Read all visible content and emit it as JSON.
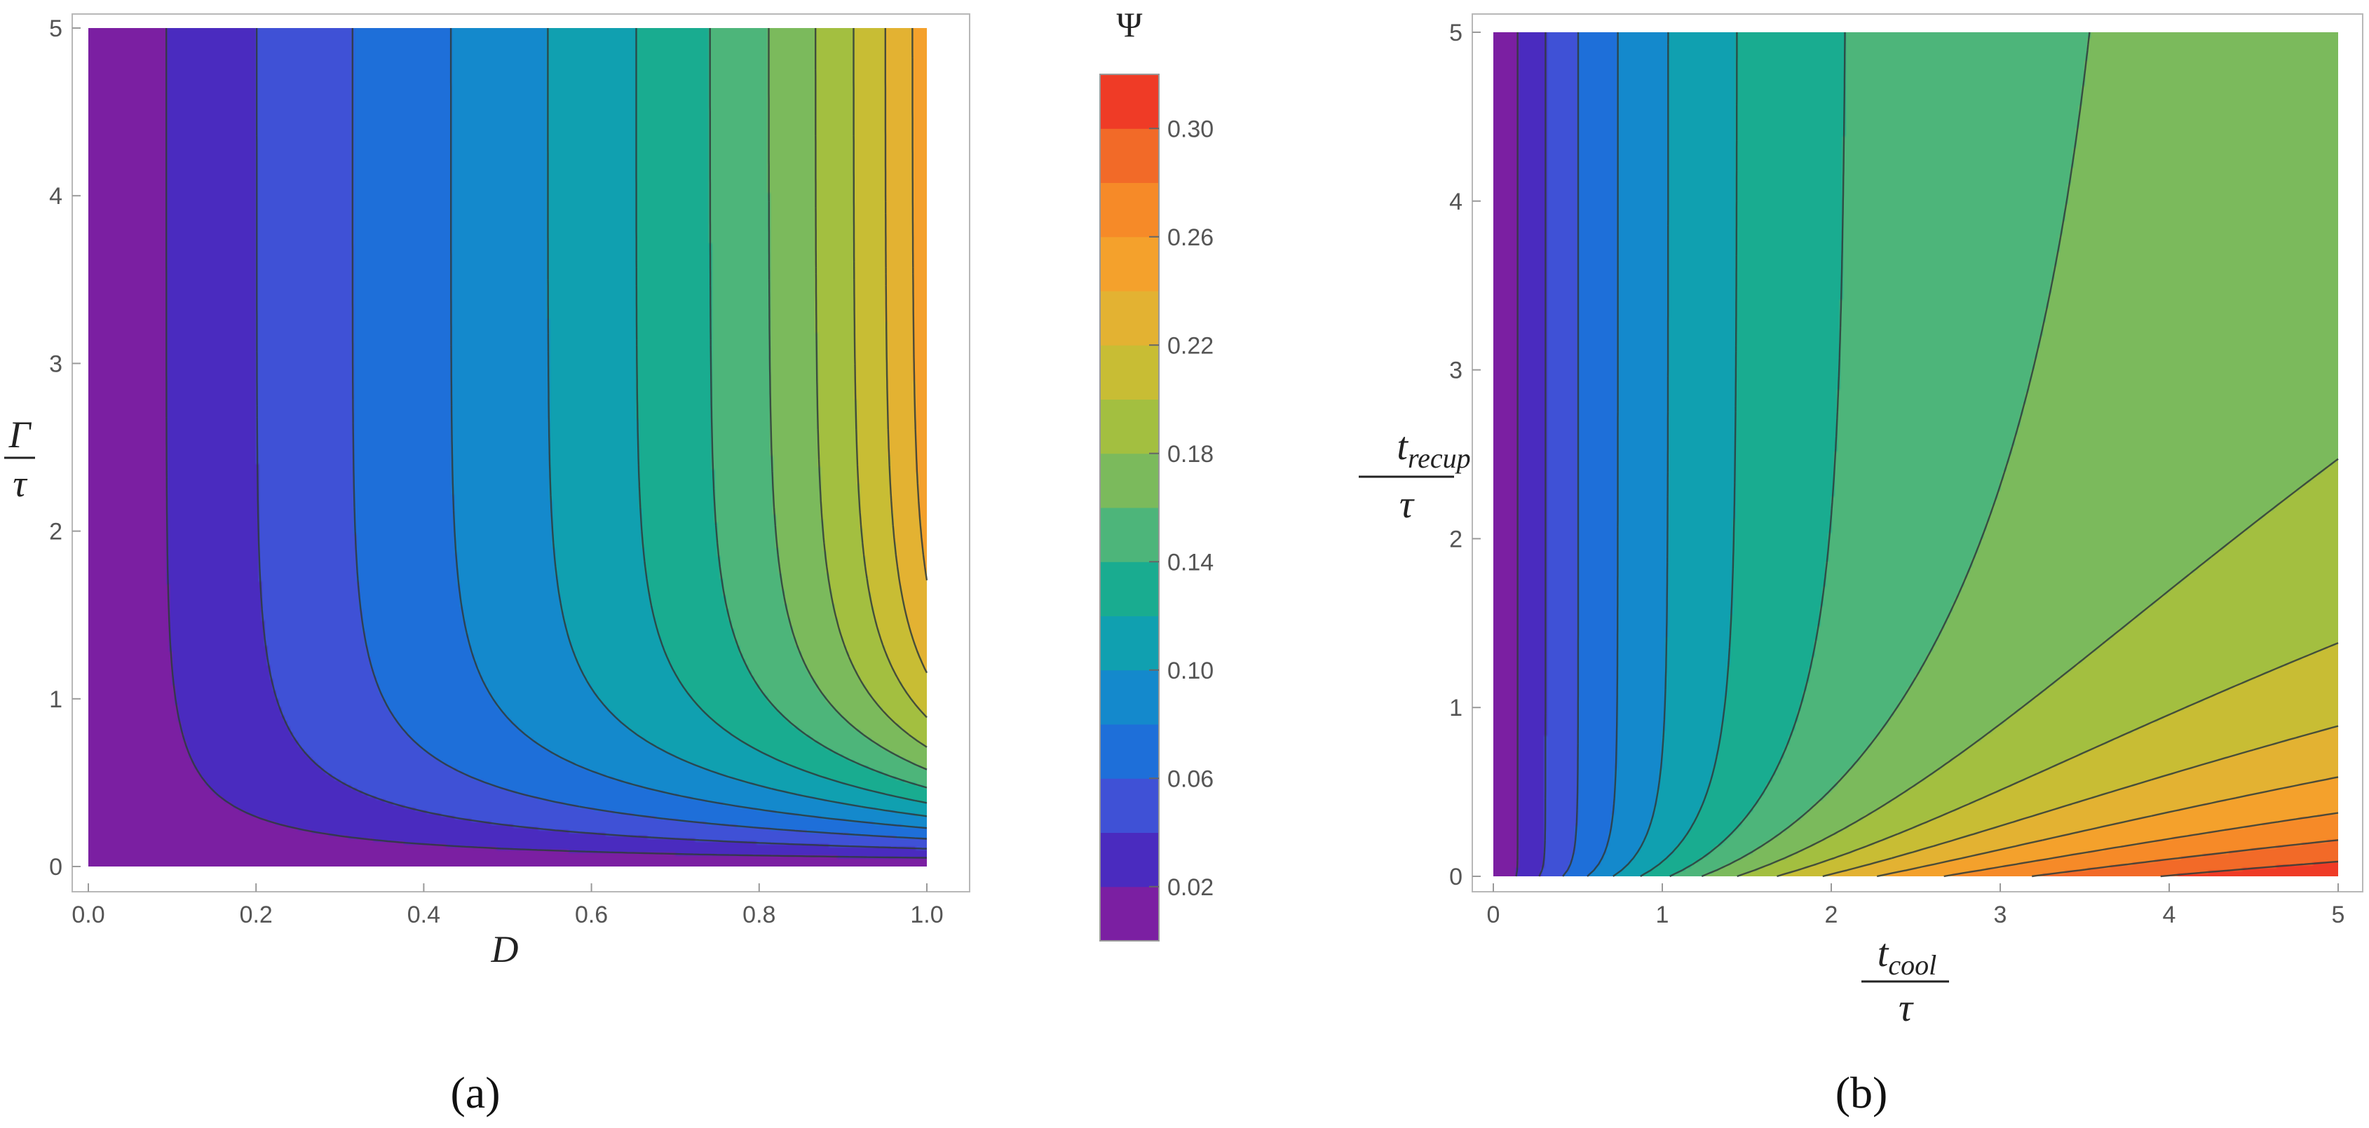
{
  "figure": {
    "panel_a_label": "(a)",
    "panel_b_label": "(b)"
  },
  "colorbar": {
    "title": "Ψ",
    "levels": [
      0.0,
      0.02,
      0.04,
      0.06,
      0.08,
      0.1,
      0.12,
      0.14,
      0.16,
      0.18,
      0.2,
      0.22,
      0.24,
      0.26,
      0.28,
      0.3,
      0.32
    ],
    "tick_values": [
      0.02,
      0.06,
      0.1,
      0.14,
      0.18,
      0.22,
      0.26,
      0.3
    ],
    "tick_labels": [
      "0.02",
      "0.06",
      "0.10",
      "0.14",
      "0.18",
      "0.22",
      "0.26",
      "0.30"
    ],
    "colors": [
      "#7b1fa2",
      "#4a2bbf",
      "#3f51d6",
      "#1e6fd9",
      "#1489cc",
      "#10a0b0",
      "#19ac90",
      "#4db57a",
      "#7bba5c",
      "#a3bf40",
      "#c8bd34",
      "#e3b232",
      "#f4a12c",
      "#f68a28",
      "#f26a28",
      "#ef3b26"
    ]
  },
  "chart_data": [
    {
      "type": "contour",
      "panel": "(a)",
      "xlabel": "D",
      "ylabel_num": "Γ",
      "ylabel_den": "τ",
      "xlim": [
        0,
        1
      ],
      "ylim": [
        0,
        5
      ],
      "x_ticks": [
        0.0,
        0.2,
        0.4,
        0.6,
        0.8,
        1.0
      ],
      "x_tick_labels": [
        "0.0",
        "0.2",
        "0.4",
        "0.6",
        "0.8",
        "1.0"
      ],
      "y_ticks": [
        0,
        1,
        2,
        3,
        4,
        5
      ],
      "y_tick_labels": [
        "0",
        "1",
        "2",
        "3",
        "4",
        "5"
      ],
      "contour_levels": [
        0.02,
        0.04,
        0.06,
        0.08,
        0.1,
        0.12,
        0.14,
        0.16,
        0.18,
        0.2,
        0.22,
        0.24,
        0.26,
        0.28,
        0.3
      ],
      "psi_range": [
        0.0,
        0.32
      ]
    },
    {
      "type": "contour",
      "panel": "(b)",
      "xlabel_num": "t",
      "xlabel_num_sub": "cool",
      "xlabel_den": "τ",
      "ylabel_num": "t",
      "ylabel_num_sub": "recup",
      "ylabel_den": "τ",
      "xlim": [
        0,
        5
      ],
      "ylim": [
        0,
        5
      ],
      "x_ticks": [
        0,
        1,
        2,
        3,
        4,
        5
      ],
      "x_tick_labels": [
        "0",
        "1",
        "2",
        "3",
        "4",
        "5"
      ],
      "y_ticks": [
        0,
        1,
        2,
        3,
        4,
        5
      ],
      "y_tick_labels": [
        "0",
        "1",
        "2",
        "3",
        "4",
        "5"
      ],
      "contour_levels": [
        0.02,
        0.04,
        0.06,
        0.08,
        0.1,
        0.12,
        0.14,
        0.16,
        0.18,
        0.2,
        0.22,
        0.24,
        0.26,
        0.28,
        0.3
      ],
      "psi_range": [
        0.0,
        0.32
      ]
    }
  ]
}
